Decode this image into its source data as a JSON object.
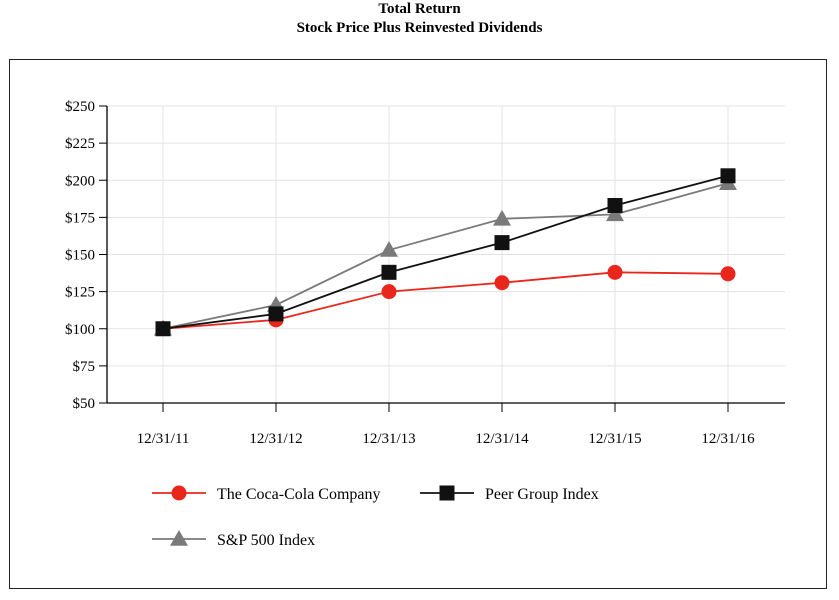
{
  "header": {
    "title": "Total Return",
    "subtitle": "Stock Price Plus Reinvested Dividends"
  },
  "chart_data": {
    "type": "line",
    "title": "Total Return",
    "subtitle": "Stock Price Plus Reinvested Dividends",
    "xlabel": "",
    "ylabel": "",
    "categories": [
      "12/31/11",
      "12/31/12",
      "12/31/13",
      "12/31/14",
      "12/31/15",
      "12/31/16"
    ],
    "ylim": [
      50,
      250
    ],
    "yticks": [
      250,
      225,
      200,
      175,
      150,
      125,
      100,
      75,
      50
    ],
    "ytick_labels": [
      "$250",
      "$225",
      "$200",
      "$175",
      "$150",
      "$125",
      "$100",
      "$75",
      "$50"
    ],
    "grid": true,
    "legend_position": "bottom",
    "series": [
      {
        "name": "The Coca-Cola Company",
        "marker": "circle",
        "color": "#e8261c",
        "values": [
          100,
          106,
          125,
          131,
          138,
          137
        ]
      },
      {
        "name": "Peer Group Index",
        "marker": "square",
        "color": "#111111",
        "values": [
          100,
          110,
          138,
          158,
          183,
          203
        ]
      },
      {
        "name": "S&P 500 Index",
        "marker": "triangle",
        "color": "#7a7a7a",
        "values": [
          100,
          116,
          153,
          174,
          177,
          198
        ]
      }
    ]
  }
}
